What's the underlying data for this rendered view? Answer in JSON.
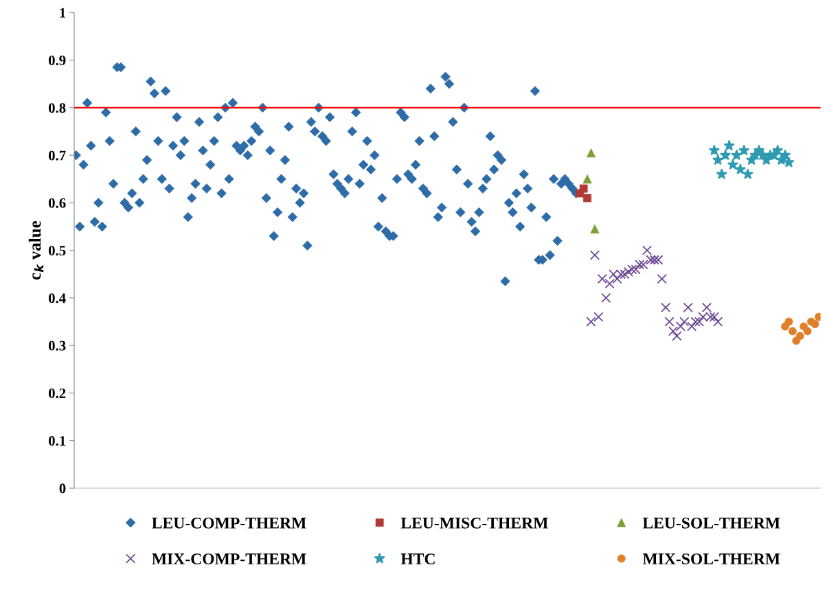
{
  "chart_data": {
    "type": "scatter",
    "ylabel": "c$_{k}$ value",
    "ylim": [
      0,
      1
    ],
    "yticks": [
      0,
      0.1,
      0.2,
      0.3,
      0.4,
      0.5,
      0.6,
      0.7,
      0.8,
      0.9,
      1
    ],
    "tick_labels": "y",
    "grid": false,
    "legend": "bottom",
    "categories": [
      null,
      null,
      null,
      null,
      null,
      null,
      null,
      null,
      null,
      null,
      null,
      null,
      null,
      null,
      null,
      null,
      null,
      null,
      null,
      null,
      null,
      null,
      null,
      null,
      null,
      null,
      null,
      null,
      null,
      null,
      null,
      null,
      null,
      null,
      null,
      null,
      null,
      null,
      null,
      null,
      null,
      null,
      null,
      null,
      null,
      null,
      null,
      null,
      null,
      null,
      null,
      null,
      null,
      null,
      null,
      null,
      null,
      null,
      null,
      null,
      null,
      null,
      null,
      null,
      null,
      null,
      null,
      null,
      null,
      null,
      null,
      null,
      null,
      null,
      null,
      null,
      null,
      null,
      null,
      null,
      null,
      null,
      null,
      null,
      null,
      null,
      null,
      null,
      null,
      null,
      null,
      null,
      null,
      null,
      null,
      null,
      null,
      null,
      null,
      null,
      null,
      null,
      null,
      null,
      null,
      null,
      null,
      null,
      null,
      null,
      null,
      null,
      null,
      null,
      null,
      null,
      null,
      null,
      null,
      null,
      null,
      null,
      null,
      null,
      null,
      null,
      null,
      null,
      null,
      null,
      null,
      null,
      null,
      null,
      null,
      null,
      null,
      null,
      null,
      null,
      null,
      null,
      null,
      null,
      null,
      null,
      null,
      null,
      null,
      null,
      null,
      null,
      null,
      null,
      null,
      null,
      null,
      null,
      null,
      null,
      null,
      null,
      null,
      null,
      null,
      null,
      null,
      null,
      null,
      null,
      null,
      null,
      null,
      null,
      null,
      null,
      null,
      null,
      null,
      null,
      null,
      null,
      null,
      null,
      null,
      null,
      null,
      null,
      null,
      null,
      null,
      null,
      null,
      null,
      null,
      null,
      null,
      null,
      null,
      null
    ],
    "ref_lines": [
      {
        "axis": "y",
        "value": 0.8,
        "color": "#ff0000"
      }
    ],
    "series": [
      {
        "name": "LEU-COMP-THERM",
        "color": "#2e6ca8",
        "marker": "diamond",
        "values": [
          0.7,
          0.55,
          0.68,
          0.81,
          0.72,
          0.56,
          0.6,
          0.55,
          0.79,
          0.73,
          0.64,
          0.885,
          0.885,
          0.6,
          0.59,
          0.62,
          0.75,
          0.6,
          0.65,
          0.69,
          0.855,
          0.83,
          0.73,
          0.65,
          0.835,
          0.63,
          0.72,
          0.78,
          0.7,
          0.73,
          0.57,
          0.61,
          0.64,
          0.77,
          0.71,
          0.63,
          0.68,
          0.73,
          0.78,
          0.62,
          0.8,
          0.65,
          0.81,
          0.72,
          0.71,
          0.72,
          0.7,
          0.73,
          0.76,
          0.75,
          0.8,
          0.61,
          0.71,
          0.53,
          0.58,
          0.65,
          0.69,
          0.76,
          0.57,
          0.63,
          0.6,
          0.62,
          0.51,
          0.77,
          0.75,
          0.8,
          0.74,
          0.73,
          0.78,
          0.66,
          0.64,
          0.63,
          0.62,
          0.65,
          0.75,
          0.79,
          0.64,
          0.68,
          0.73,
          0.67,
          0.7,
          0.55,
          0.61,
          0.54,
          0.53,
          0.53,
          0.65,
          0.79,
          0.78,
          0.66,
          0.65,
          0.68,
          0.73,
          0.63,
          0.62,
          0.84,
          0.74,
          0.57,
          0.59,
          0.865,
          0.85,
          0.77,
          0.67,
          0.58,
          0.8,
          0.64,
          0.56,
          0.54,
          0.58,
          0.63,
          0.65,
          0.74,
          0.67,
          0.7,
          0.69,
          0.435,
          0.6,
          0.58,
          0.62,
          0.55,
          0.66,
          0.63,
          0.59,
          0.835,
          0.48,
          0.48,
          0.57,
          0.49,
          0.65,
          0.52,
          0.64,
          0.65,
          0.64,
          0.63,
          0.62,
          null,
          null,
          null,
          null,
          null,
          null,
          null,
          null,
          null,
          null,
          null,
          null,
          null,
          null,
          null,
          null,
          null,
          null,
          null,
          null,
          null,
          null,
          null,
          null,
          null,
          null,
          null,
          null,
          null,
          null,
          null,
          null,
          null,
          null,
          null,
          null,
          null,
          null,
          null,
          null,
          null,
          null,
          null,
          null,
          null,
          null,
          null,
          null,
          null,
          null,
          null,
          null,
          null,
          null,
          null,
          null,
          null,
          null,
          null,
          null,
          null,
          null,
          null,
          null,
          null
        ]
      },
      {
        "name": "LEU-MISC-THERM",
        "color": "#b03a37",
        "marker": "square",
        "values": [
          null,
          null,
          null,
          null,
          null,
          null,
          null,
          null,
          null,
          null,
          null,
          null,
          null,
          null,
          null,
          null,
          null,
          null,
          null,
          null,
          null,
          null,
          null,
          null,
          null,
          null,
          null,
          null,
          null,
          null,
          null,
          null,
          null,
          null,
          null,
          null,
          null,
          null,
          null,
          null,
          null,
          null,
          null,
          null,
          null,
          null,
          null,
          null,
          null,
          null,
          null,
          null,
          null,
          null,
          null,
          null,
          null,
          null,
          null,
          null,
          null,
          null,
          null,
          null,
          null,
          null,
          null,
          null,
          null,
          null,
          null,
          null,
          null,
          null,
          null,
          null,
          null,
          null,
          null,
          null,
          null,
          null,
          null,
          null,
          null,
          null,
          null,
          null,
          null,
          null,
          null,
          null,
          null,
          null,
          null,
          null,
          null,
          null,
          null,
          null,
          null,
          null,
          null,
          null,
          null,
          null,
          null,
          null,
          null,
          null,
          null,
          null,
          null,
          null,
          null,
          null,
          null,
          null,
          null,
          null,
          null,
          null,
          null,
          null,
          null,
          null,
          null,
          null,
          null,
          null,
          null,
          null,
          null,
          null,
          null,
          0.62,
          0.63,
          0.61,
          null,
          null,
          null,
          null,
          null,
          null,
          null,
          null,
          null,
          null,
          null,
          null,
          null,
          null,
          null,
          null,
          null,
          null,
          null,
          null,
          null,
          null,
          null,
          null,
          null,
          null,
          null,
          null,
          null,
          null,
          null,
          null,
          null,
          null,
          null,
          null,
          null,
          null,
          null,
          null,
          null,
          null,
          null,
          null,
          null,
          null,
          null,
          null,
          null,
          null,
          null,
          null,
          null,
          null,
          null,
          null,
          null,
          null,
          null,
          null,
          null,
          null
        ]
      },
      {
        "name": "LEU-SOL-THERM",
        "color": "#7f9f3a",
        "marker": "triangle",
        "values": [
          null,
          null,
          null,
          null,
          null,
          null,
          null,
          null,
          null,
          null,
          null,
          null,
          null,
          null,
          null,
          null,
          null,
          null,
          null,
          null,
          null,
          null,
          null,
          null,
          null,
          null,
          null,
          null,
          null,
          null,
          null,
          null,
          null,
          null,
          null,
          null,
          null,
          null,
          null,
          null,
          null,
          null,
          null,
          null,
          null,
          null,
          null,
          null,
          null,
          null,
          null,
          null,
          null,
          null,
          null,
          null,
          null,
          null,
          null,
          null,
          null,
          null,
          null,
          null,
          null,
          null,
          null,
          null,
          null,
          null,
          null,
          null,
          null,
          null,
          null,
          null,
          null,
          null,
          null,
          null,
          null,
          null,
          null,
          null,
          null,
          null,
          null,
          null,
          null,
          null,
          null,
          null,
          null,
          null,
          null,
          null,
          null,
          null,
          null,
          null,
          null,
          null,
          null,
          null,
          null,
          null,
          null,
          null,
          null,
          null,
          null,
          null,
          null,
          null,
          null,
          null,
          null,
          null,
          null,
          null,
          null,
          null,
          null,
          null,
          null,
          null,
          null,
          null,
          null,
          null,
          null,
          null,
          null,
          null,
          null,
          null,
          null,
          0.65,
          0.705,
          0.545,
          null,
          null,
          null,
          null,
          null,
          null,
          null,
          null,
          null,
          null,
          null,
          null,
          null,
          null,
          null,
          null,
          null,
          null,
          null,
          null,
          null,
          null,
          null,
          null,
          null,
          null,
          null,
          null,
          null,
          null,
          null,
          null,
          null,
          null,
          null,
          null,
          null,
          null,
          null,
          null,
          null,
          null,
          null,
          null,
          null,
          null,
          null,
          null,
          null,
          null,
          null,
          null,
          null,
          null,
          null,
          null,
          null,
          null,
          null,
          null
        ]
      },
      {
        "name": "MIX-COMP-THERM",
        "color": "#6f4a94",
        "marker": "cross",
        "values": [
          null,
          null,
          null,
          null,
          null,
          null,
          null,
          null,
          null,
          null,
          null,
          null,
          null,
          null,
          null,
          null,
          null,
          null,
          null,
          null,
          null,
          null,
          null,
          null,
          null,
          null,
          null,
          null,
          null,
          null,
          null,
          null,
          null,
          null,
          null,
          null,
          null,
          null,
          null,
          null,
          null,
          null,
          null,
          null,
          null,
          null,
          null,
          null,
          null,
          null,
          null,
          null,
          null,
          null,
          null,
          null,
          null,
          null,
          null,
          null,
          null,
          null,
          null,
          null,
          null,
          null,
          null,
          null,
          null,
          null,
          null,
          null,
          null,
          null,
          null,
          null,
          null,
          null,
          null,
          null,
          null,
          null,
          null,
          null,
          null,
          null,
          null,
          null,
          null,
          null,
          null,
          null,
          null,
          null,
          null,
          null,
          null,
          null,
          null,
          null,
          null,
          null,
          null,
          null,
          null,
          null,
          null,
          null,
          null,
          null,
          null,
          null,
          null,
          null,
          null,
          null,
          null,
          null,
          null,
          null,
          null,
          null,
          null,
          null,
          null,
          null,
          null,
          null,
          null,
          null,
          null,
          null,
          null,
          null,
          null,
          null,
          null,
          null,
          0.35,
          0.49,
          0.36,
          0.44,
          0.4,
          0.43,
          0.45,
          0.44,
          0.45,
          0.45,
          0.455,
          0.46,
          0.46,
          0.47,
          0.47,
          0.5,
          0.48,
          0.48,
          0.48,
          0.44,
          0.38,
          0.35,
          0.33,
          0.32,
          0.34,
          0.35,
          0.38,
          0.34,
          0.35,
          0.35,
          0.36,
          0.38,
          0.36,
          0.36,
          0.35,
          null,
          null,
          null,
          null,
          null,
          null,
          null,
          null,
          null,
          null,
          null,
          null,
          null,
          null,
          null,
          null,
          null,
          null,
          null,
          null,
          null,
          null,
          null,
          null,
          null,
          null,
          null
        ]
      },
      {
        "name": "HTC",
        "color": "#2e9bb2",
        "marker": "star",
        "values": [
          null,
          null,
          null,
          null,
          null,
          null,
          null,
          null,
          null,
          null,
          null,
          null,
          null,
          null,
          null,
          null,
          null,
          null,
          null,
          null,
          null,
          null,
          null,
          null,
          null,
          null,
          null,
          null,
          null,
          null,
          null,
          null,
          null,
          null,
          null,
          null,
          null,
          null,
          null,
          null,
          null,
          null,
          null,
          null,
          null,
          null,
          null,
          null,
          null,
          null,
          null,
          null,
          null,
          null,
          null,
          null,
          null,
          null,
          null,
          null,
          null,
          null,
          null,
          null,
          null,
          null,
          null,
          null,
          null,
          null,
          null,
          null,
          null,
          null,
          null,
          null,
          null,
          null,
          null,
          null,
          null,
          null,
          null,
          null,
          null,
          null,
          null,
          null,
          null,
          null,
          null,
          null,
          null,
          null,
          null,
          null,
          null,
          null,
          null,
          null,
          null,
          null,
          null,
          null,
          null,
          null,
          null,
          null,
          null,
          null,
          null,
          null,
          null,
          null,
          null,
          null,
          null,
          null,
          null,
          null,
          null,
          null,
          null,
          null,
          null,
          null,
          null,
          null,
          null,
          null,
          null,
          null,
          null,
          null,
          null,
          null,
          null,
          null,
          null,
          null,
          null,
          null,
          null,
          null,
          null,
          null,
          null,
          null,
          null,
          null,
          null,
          null,
          null,
          null,
          null,
          null,
          null,
          null,
          null,
          null,
          null,
          null,
          null,
          null,
          null,
          null,
          null,
          null,
          null,
          null,
          null,
          0.71,
          0.69,
          0.66,
          0.7,
          0.72,
          0.68,
          0.7,
          0.67,
          0.71,
          0.66,
          0.69,
          0.7,
          0.71,
          0.7,
          0.69,
          0.7,
          0.7,
          0.71,
          0.69,
          0.7,
          0.685,
          null,
          null,
          null,
          null,
          null,
          null,
          null,
          null
        ]
      },
      {
        "name": "MIX-SOL-THERM",
        "color": "#e07f2a",
        "marker": "circle",
        "values": [
          null,
          null,
          null,
          null,
          null,
          null,
          null,
          null,
          null,
          null,
          null,
          null,
          null,
          null,
          null,
          null,
          null,
          null,
          null,
          null,
          null,
          null,
          null,
          null,
          null,
          null,
          null,
          null,
          null,
          null,
          null,
          null,
          null,
          null,
          null,
          null,
          null,
          null,
          null,
          null,
          null,
          null,
          null,
          null,
          null,
          null,
          null,
          null,
          null,
          null,
          null,
          null,
          null,
          null,
          null,
          null,
          null,
          null,
          null,
          null,
          null,
          null,
          null,
          null,
          null,
          null,
          null,
          null,
          null,
          null,
          null,
          null,
          null,
          null,
          null,
          null,
          null,
          null,
          null,
          null,
          null,
          null,
          null,
          null,
          null,
          null,
          null,
          null,
          null,
          null,
          null,
          null,
          null,
          null,
          null,
          null,
          null,
          null,
          null,
          null,
          null,
          null,
          null,
          null,
          null,
          null,
          null,
          null,
          null,
          null,
          null,
          null,
          null,
          null,
          null,
          null,
          null,
          null,
          null,
          null,
          null,
          null,
          null,
          null,
          null,
          null,
          null,
          null,
          null,
          null,
          null,
          null,
          null,
          null,
          null,
          null,
          null,
          null,
          null,
          null,
          null,
          null,
          null,
          null,
          null,
          null,
          null,
          null,
          null,
          null,
          null,
          null,
          null,
          null,
          null,
          null,
          null,
          null,
          null,
          null,
          null,
          null,
          null,
          null,
          null,
          null,
          null,
          null,
          null,
          null,
          null,
          null,
          null,
          null,
          null,
          null,
          null,
          null,
          null,
          null,
          null,
          null,
          null,
          null,
          null,
          null,
          null,
          null,
          null,
          null,
          0.34,
          0.35,
          0.33,
          0.31,
          0.32,
          0.34,
          0.33,
          0.35,
          0.345,
          0.36
        ]
      }
    ]
  }
}
